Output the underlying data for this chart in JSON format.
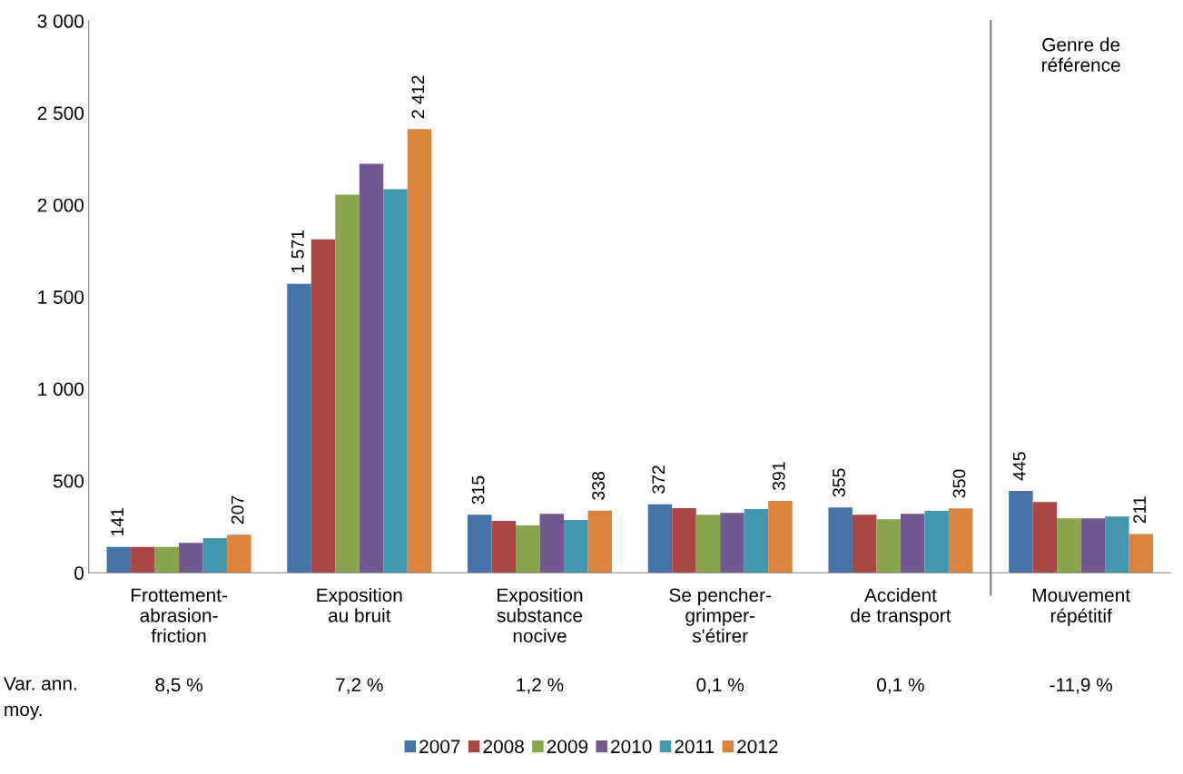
{
  "chart_data": {
    "type": "bar",
    "categories": [
      "Frottement-\nabrasion-\nfriction",
      "Exposition\nau bruit",
      "Exposition\nsubstance\nnocive",
      "Se pencher-\ngrimper-\ns'étirer",
      "Accident\nde transport",
      "Mouvement\nrépétitif"
    ],
    "series": [
      {
        "name": "2007",
        "color": "#4572a7",
        "values": [
          141,
          1571,
          315,
          372,
          355,
          445
        ],
        "value_labels": [
          "141",
          "1 571",
          "315",
          "372",
          "355",
          "445"
        ]
      },
      {
        "name": "2008",
        "color": "#aa4643",
        "values": [
          140,
          1813,
          282,
          351,
          316,
          385
        ]
      },
      {
        "name": "2009",
        "color": "#89a54e",
        "values": [
          140,
          2055,
          257,
          316,
          291,
          296
        ]
      },
      {
        "name": "2010",
        "color": "#71588f",
        "values": [
          163,
          2223,
          321,
          326,
          321,
          296
        ]
      },
      {
        "name": "2011",
        "color": "#4198af",
        "values": [
          188,
          2085,
          287,
          346,
          336,
          306
        ]
      },
      {
        "name": "2012",
        "color": "#db843d",
        "values": [
          207,
          2412,
          338,
          391,
          350,
          211
        ],
        "value_labels": [
          "207",
          "2 412",
          "338",
          "391",
          "350",
          "211"
        ]
      }
    ],
    "ylim": [
      0,
      3000
    ],
    "yticks": [
      {
        "value": 0,
        "label": "0"
      },
      {
        "value": 500,
        "label": "500"
      },
      {
        "value": 1000,
        "label": "1 000"
      },
      {
        "value": 1500,
        "label": "1 500"
      },
      {
        "value": 2000,
        "label": "2 000"
      },
      {
        "value": 2500,
        "label": "2 500"
      },
      {
        "value": 3000,
        "label": "3 000"
      }
    ],
    "annotations": [
      "Var. ann.\nmoy.",
      "8,5 %",
      "7,2 %",
      "1,2 %",
      "0,1 %",
      "0,1 %",
      "-11,9 %",
      "Genre de\nréférence"
    ],
    "legend": "bottom",
    "grid": false
  }
}
